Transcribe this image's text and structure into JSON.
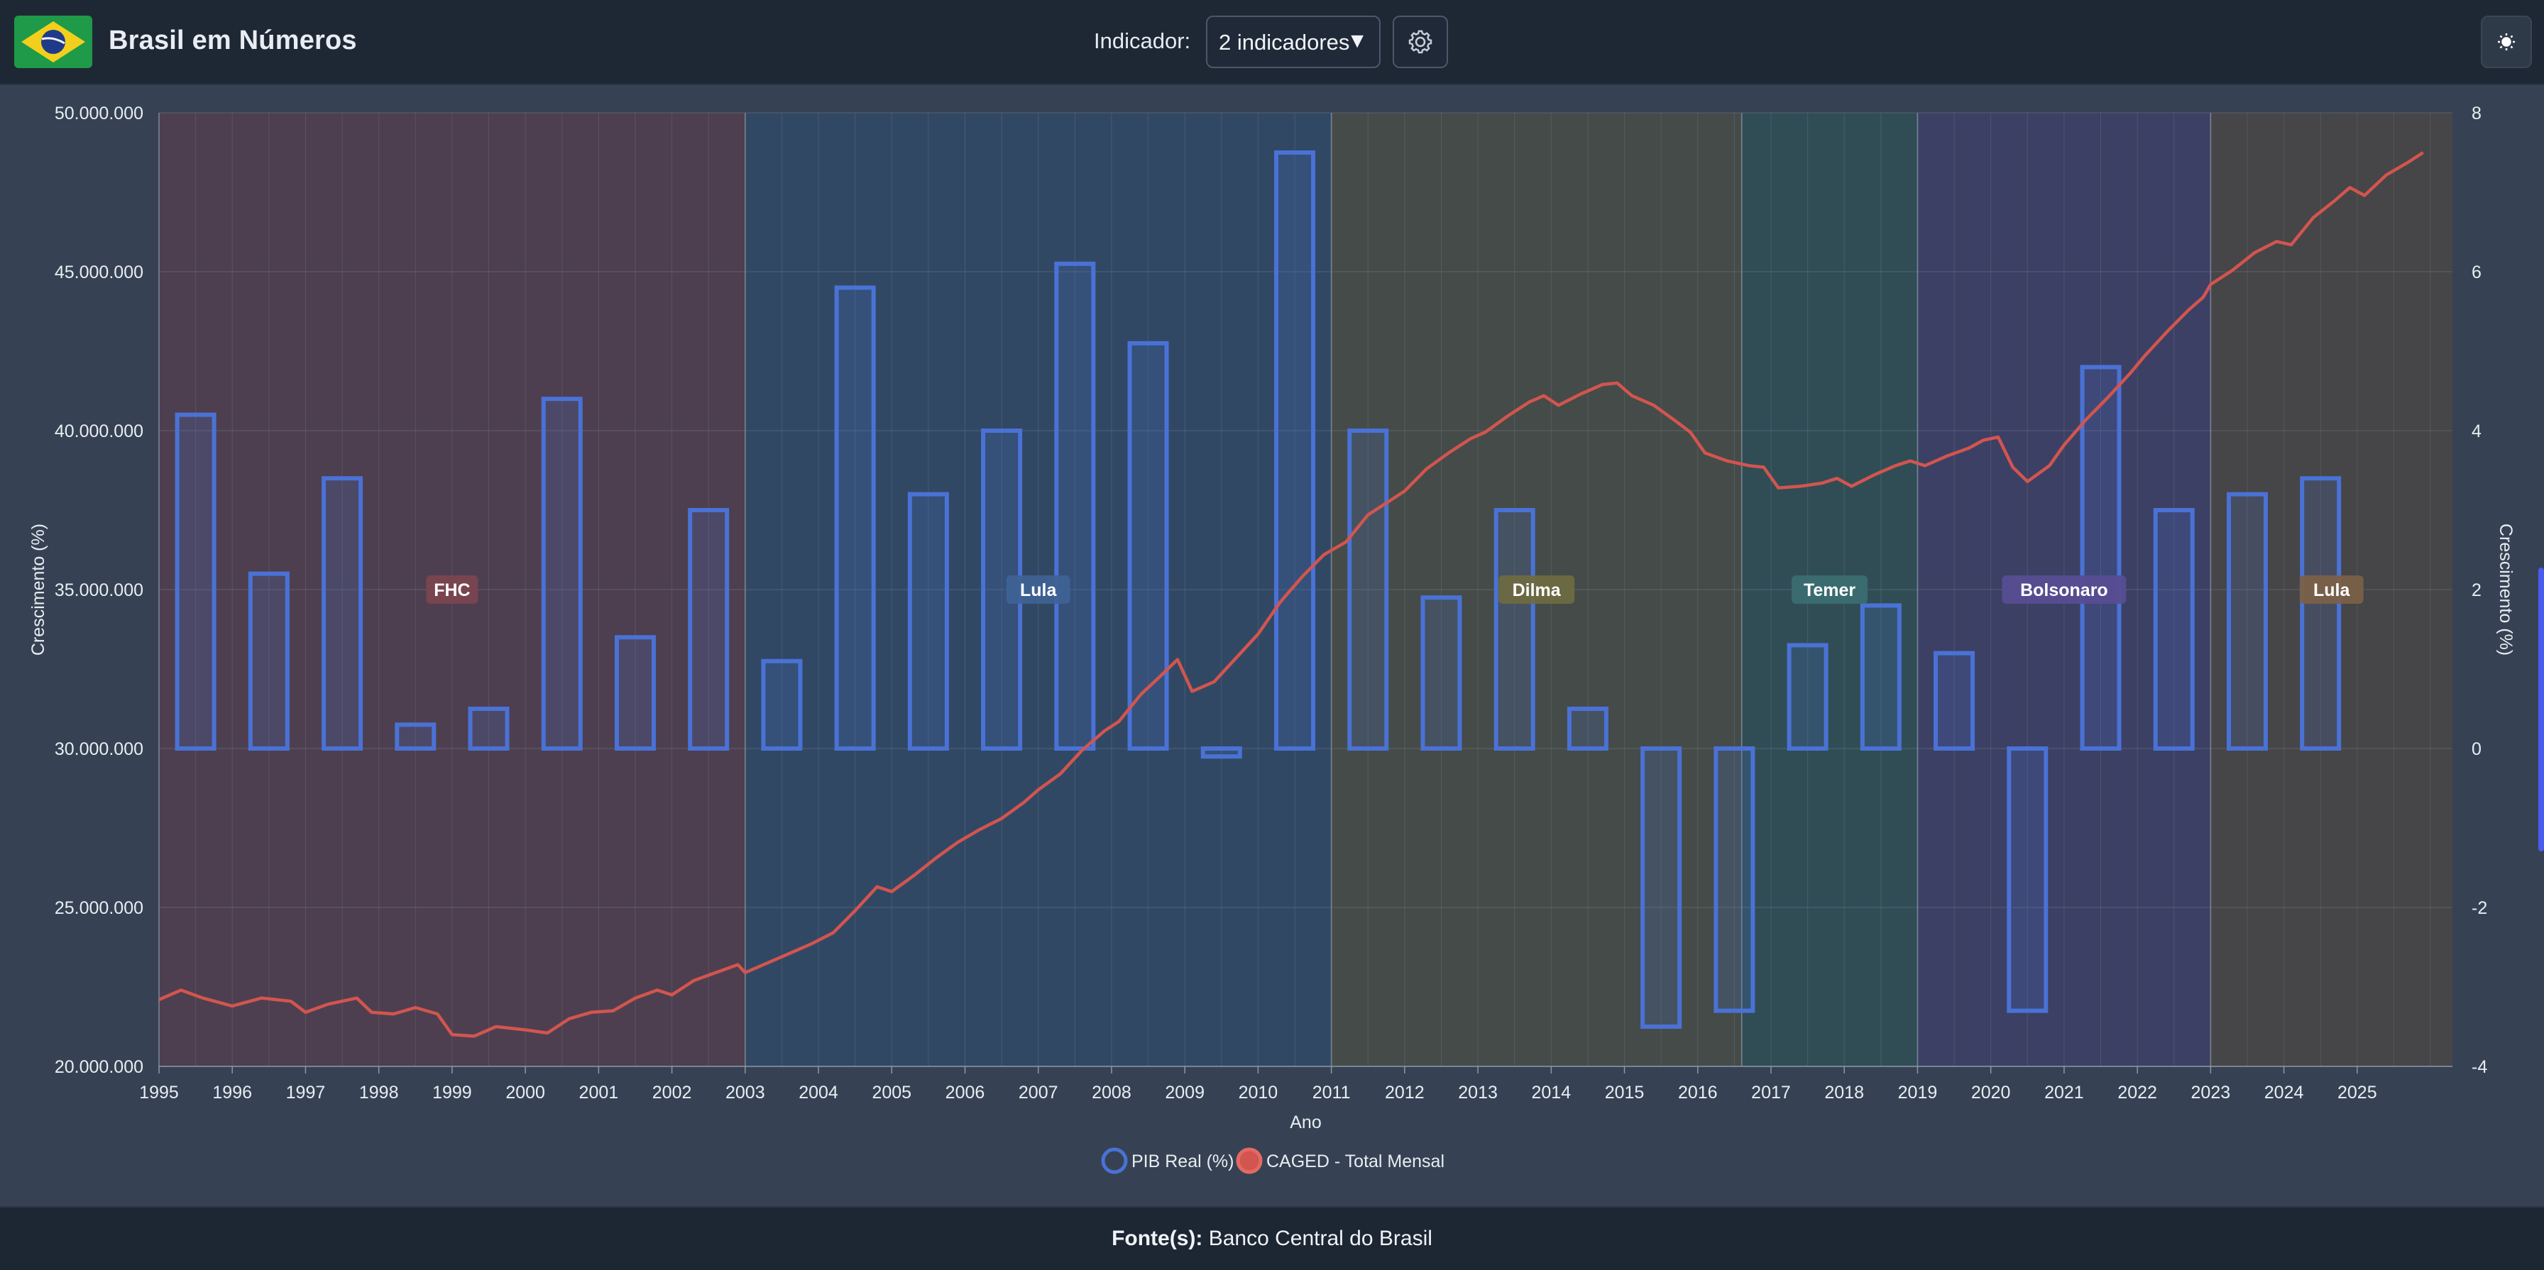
{
  "header": {
    "title": "Brasil em Números",
    "indicator_label": "Indicador:",
    "indicator_value": "2 indicadores",
    "caret": "▼"
  },
  "icons": {
    "logo": "brazil-flag-icon",
    "settings": "gear-icon",
    "theme": "sun-icon"
  },
  "footer": {
    "source_label": "Fonte(s):",
    "source_value": "Banco Central do Brasil"
  },
  "colors": {
    "pib": "#4a72d6",
    "caged": "#d2554f"
  },
  "chart_data": {
    "type": "bar+line",
    "xlabel": "Ano",
    "ylabel_left": "",
    "ylabel_right": "Crescimento (%)",
    "ylabel_left_text": "Crescimento (%)",
    "x_ticks": [
      "1995",
      "1996",
      "1997",
      "1998",
      "1999",
      "2000",
      "2001",
      "2002",
      "2003",
      "2004",
      "2005",
      "2006",
      "2007",
      "2008",
      "2009",
      "2010",
      "2011",
      "2012",
      "2013",
      "2014",
      "2015",
      "2016",
      "2017",
      "2018",
      "2019",
      "2020",
      "2021",
      "2022",
      "2023",
      "2024",
      "2025"
    ],
    "y_left": {
      "min": 20000000,
      "max": 50000000,
      "ticks": [
        20000000,
        25000000,
        30000000,
        35000000,
        40000000,
        45000000,
        50000000
      ],
      "tick_labels": [
        "20.000.000",
        "25.000.000",
        "30.000.000",
        "35.000.000",
        "40.000.000",
        "45.000.000",
        "50.000.000"
      ]
    },
    "y_right": {
      "min": -4,
      "max": 8,
      "ticks": [
        -4,
        -2,
        0,
        2,
        4,
        6,
        8
      ],
      "tick_labels": [
        "-4",
        "-2",
        "0",
        "2",
        "4",
        "6",
        "8"
      ]
    },
    "periods": [
      {
        "label": "FHC",
        "start": 1995,
        "end": 2003,
        "fill": "#6a3c4c",
        "badge": "#7a4450"
      },
      {
        "label": "Lula",
        "start": 2003,
        "end": 2011,
        "fill": "#2c4f7a",
        "badge": "#3e6294"
      },
      {
        "label": "Dilma",
        "start": 2011,
        "end": 2016.6,
        "fill": "#58563c",
        "badge": "#6e6a42"
      },
      {
        "label": "Temer",
        "start": 2016.6,
        "end": 2019,
        "fill": "#2a5a5c",
        "badge": "#3b6d70"
      },
      {
        "label": "Bolsonaro",
        "start": 2019,
        "end": 2023,
        "fill": "#453e7a",
        "badge": "#574d92"
      },
      {
        "label": "Lula",
        "start": 2023,
        "end": 2026.3,
        "fill": "#5a4a3a",
        "badge": "#7a6048"
      }
    ],
    "series": [
      {
        "name": "PIB Real (%)",
        "type": "bar",
        "axis": "right",
        "x": [
          1995,
          1996,
          1997,
          1998,
          1999,
          2000,
          2001,
          2002,
          2003,
          2004,
          2005,
          2006,
          2007,
          2008,
          2009,
          2010,
          2011,
          2012,
          2013,
          2014,
          2015,
          2016,
          2017,
          2018,
          2019,
          2020,
          2021,
          2022,
          2023,
          2024
        ],
        "values": [
          4.2,
          2.2,
          3.4,
          0.3,
          0.5,
          4.4,
          1.4,
          3.0,
          1.1,
          5.8,
          3.2,
          4.0,
          6.1,
          5.1,
          -0.1,
          7.5,
          4.0,
          1.9,
          3.0,
          0.5,
          -3.5,
          -3.3,
          1.3,
          1.8,
          1.2,
          -3.3,
          4.8,
          3.0,
          3.2,
          3.4
        ]
      },
      {
        "name": "CAGED - Total Mensal",
        "type": "line",
        "axis": "left",
        "points": [
          [
            1995.0,
            22100000
          ],
          [
            1995.3,
            22400000
          ],
          [
            1995.6,
            22150000
          ],
          [
            1996.0,
            21900000
          ],
          [
            1996.4,
            22150000
          ],
          [
            1996.8,
            22050000
          ],
          [
            1997.0,
            21700000
          ],
          [
            1997.3,
            21950000
          ],
          [
            1997.7,
            22150000
          ],
          [
            1997.9,
            21700000
          ],
          [
            1998.2,
            21650000
          ],
          [
            1998.5,
            21850000
          ],
          [
            1998.8,
            21650000
          ],
          [
            1999.0,
            21000000
          ],
          [
            1999.3,
            20950000
          ],
          [
            1999.6,
            21250000
          ],
          [
            2000.0,
            21150000
          ],
          [
            2000.3,
            21050000
          ],
          [
            2000.6,
            21500000
          ],
          [
            2000.9,
            21700000
          ],
          [
            2001.2,
            21750000
          ],
          [
            2001.5,
            22150000
          ],
          [
            2001.8,
            22400000
          ],
          [
            2002.0,
            22250000
          ],
          [
            2002.3,
            22700000
          ],
          [
            2002.6,
            22950000
          ],
          [
            2002.9,
            23200000
          ],
          [
            2003.0,
            22950000
          ],
          [
            2003.3,
            23250000
          ],
          [
            2003.6,
            23550000
          ],
          [
            2003.9,
            23850000
          ],
          [
            2004.2,
            24200000
          ],
          [
            2004.5,
            24900000
          ],
          [
            2004.8,
            25650000
          ],
          [
            2005.0,
            25500000
          ],
          [
            2005.3,
            26000000
          ],
          [
            2005.6,
            26550000
          ],
          [
            2005.9,
            27050000
          ],
          [
            2006.2,
            27450000
          ],
          [
            2006.5,
            27800000
          ],
          [
            2006.8,
            28300000
          ],
          [
            2007.0,
            28700000
          ],
          [
            2007.3,
            29200000
          ],
          [
            2007.6,
            29950000
          ],
          [
            2007.9,
            30550000
          ],
          [
            2008.1,
            30850000
          ],
          [
            2008.4,
            31700000
          ],
          [
            2008.7,
            32350000
          ],
          [
            2008.9,
            32800000
          ],
          [
            2009.1,
            31800000
          ],
          [
            2009.4,
            32100000
          ],
          [
            2009.7,
            32850000
          ],
          [
            2010.0,
            33600000
          ],
          [
            2010.3,
            34600000
          ],
          [
            2010.6,
            35400000
          ],
          [
            2010.9,
            36100000
          ],
          [
            2011.2,
            36500000
          ],
          [
            2011.5,
            37350000
          ],
          [
            2011.8,
            37800000
          ],
          [
            2012.0,
            38100000
          ],
          [
            2012.3,
            38800000
          ],
          [
            2012.6,
            39300000
          ],
          [
            2012.9,
            39750000
          ],
          [
            2013.1,
            39950000
          ],
          [
            2013.4,
            40450000
          ],
          [
            2013.7,
            40900000
          ],
          [
            2013.9,
            41100000
          ],
          [
            2014.1,
            40800000
          ],
          [
            2014.4,
            41150000
          ],
          [
            2014.7,
            41450000
          ],
          [
            2014.9,
            41500000
          ],
          [
            2015.1,
            41100000
          ],
          [
            2015.4,
            40800000
          ],
          [
            2015.7,
            40300000
          ],
          [
            2015.9,
            39950000
          ],
          [
            2016.1,
            39300000
          ],
          [
            2016.4,
            39050000
          ],
          [
            2016.7,
            38900000
          ],
          [
            2016.9,
            38850000
          ],
          [
            2017.1,
            38200000
          ],
          [
            2017.4,
            38250000
          ],
          [
            2017.7,
            38350000
          ],
          [
            2017.9,
            38500000
          ],
          [
            2018.1,
            38250000
          ],
          [
            2018.4,
            38600000
          ],
          [
            2018.7,
            38900000
          ],
          [
            2018.9,
            39050000
          ],
          [
            2019.1,
            38900000
          ],
          [
            2019.4,
            39200000
          ],
          [
            2019.7,
            39450000
          ],
          [
            2019.9,
            39700000
          ],
          [
            2020.1,
            39800000
          ],
          [
            2020.3,
            38850000
          ],
          [
            2020.5,
            38400000
          ],
          [
            2020.8,
            38900000
          ],
          [
            2021.0,
            39550000
          ],
          [
            2021.3,
            40350000
          ],
          [
            2021.6,
            41050000
          ],
          [
            2021.9,
            41800000
          ],
          [
            2022.1,
            42350000
          ],
          [
            2022.4,
            43100000
          ],
          [
            2022.7,
            43800000
          ],
          [
            2022.9,
            44200000
          ],
          [
            2023.0,
            44600000
          ],
          [
            2023.3,
            45050000
          ],
          [
            2023.6,
            45600000
          ],
          [
            2023.9,
            45950000
          ],
          [
            2024.1,
            45850000
          ],
          [
            2024.4,
            46700000
          ],
          [
            2024.7,
            47250000
          ],
          [
            2024.9,
            47650000
          ],
          [
            2025.1,
            47400000
          ],
          [
            2025.4,
            48050000
          ],
          [
            2025.7,
            48450000
          ],
          [
            2025.9,
            48750000
          ]
        ]
      }
    ],
    "legend": "bottom-center",
    "grid": true
  }
}
